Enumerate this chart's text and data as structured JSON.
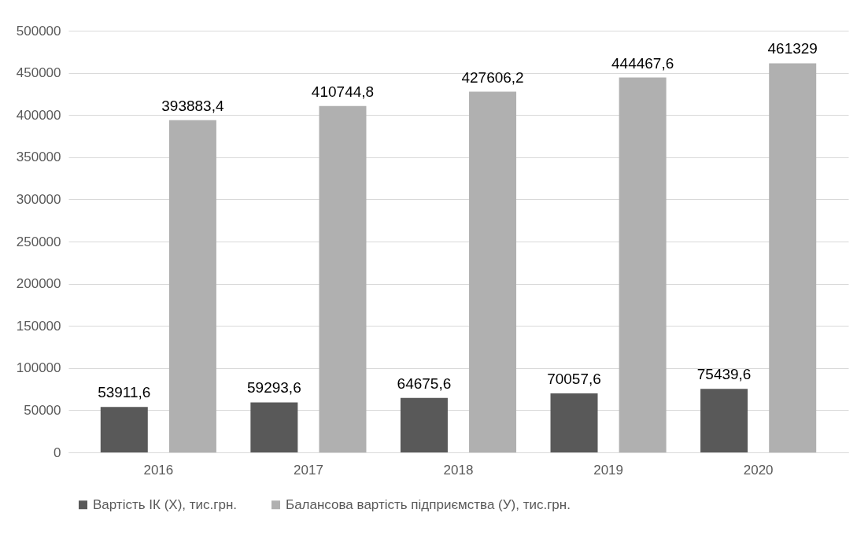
{
  "chart_data": {
    "type": "bar",
    "categories": [
      "2016",
      "2017",
      "2018",
      "2019",
      "2020"
    ],
    "series": [
      {
        "name": "Вартість ІК (Х), тис.грн.",
        "color": "#595959",
        "values": [
          53911.6,
          59293.6,
          64675.6,
          70057.6,
          75439.6
        ],
        "value_labels": [
          "53911,6",
          "59293,6",
          "64675,6",
          "70057,6",
          "75439,6"
        ]
      },
      {
        "name": "Балансова вартість підприємства (У), тис.грн.",
        "color": "#b0b0b0",
        "values": [
          393883.4,
          410744.8,
          427606.2,
          444467.6,
          461329
        ],
        "value_labels": [
          "393883,4",
          "410744,8",
          "427606,2",
          "444467,6",
          "461329"
        ]
      }
    ],
    "ylim": [
      0,
      500000
    ],
    "yticks": [
      0,
      50000,
      100000,
      150000,
      200000,
      250000,
      300000,
      350000,
      400000,
      450000,
      500000
    ],
    "grid": "y",
    "legend": "bottom"
  }
}
